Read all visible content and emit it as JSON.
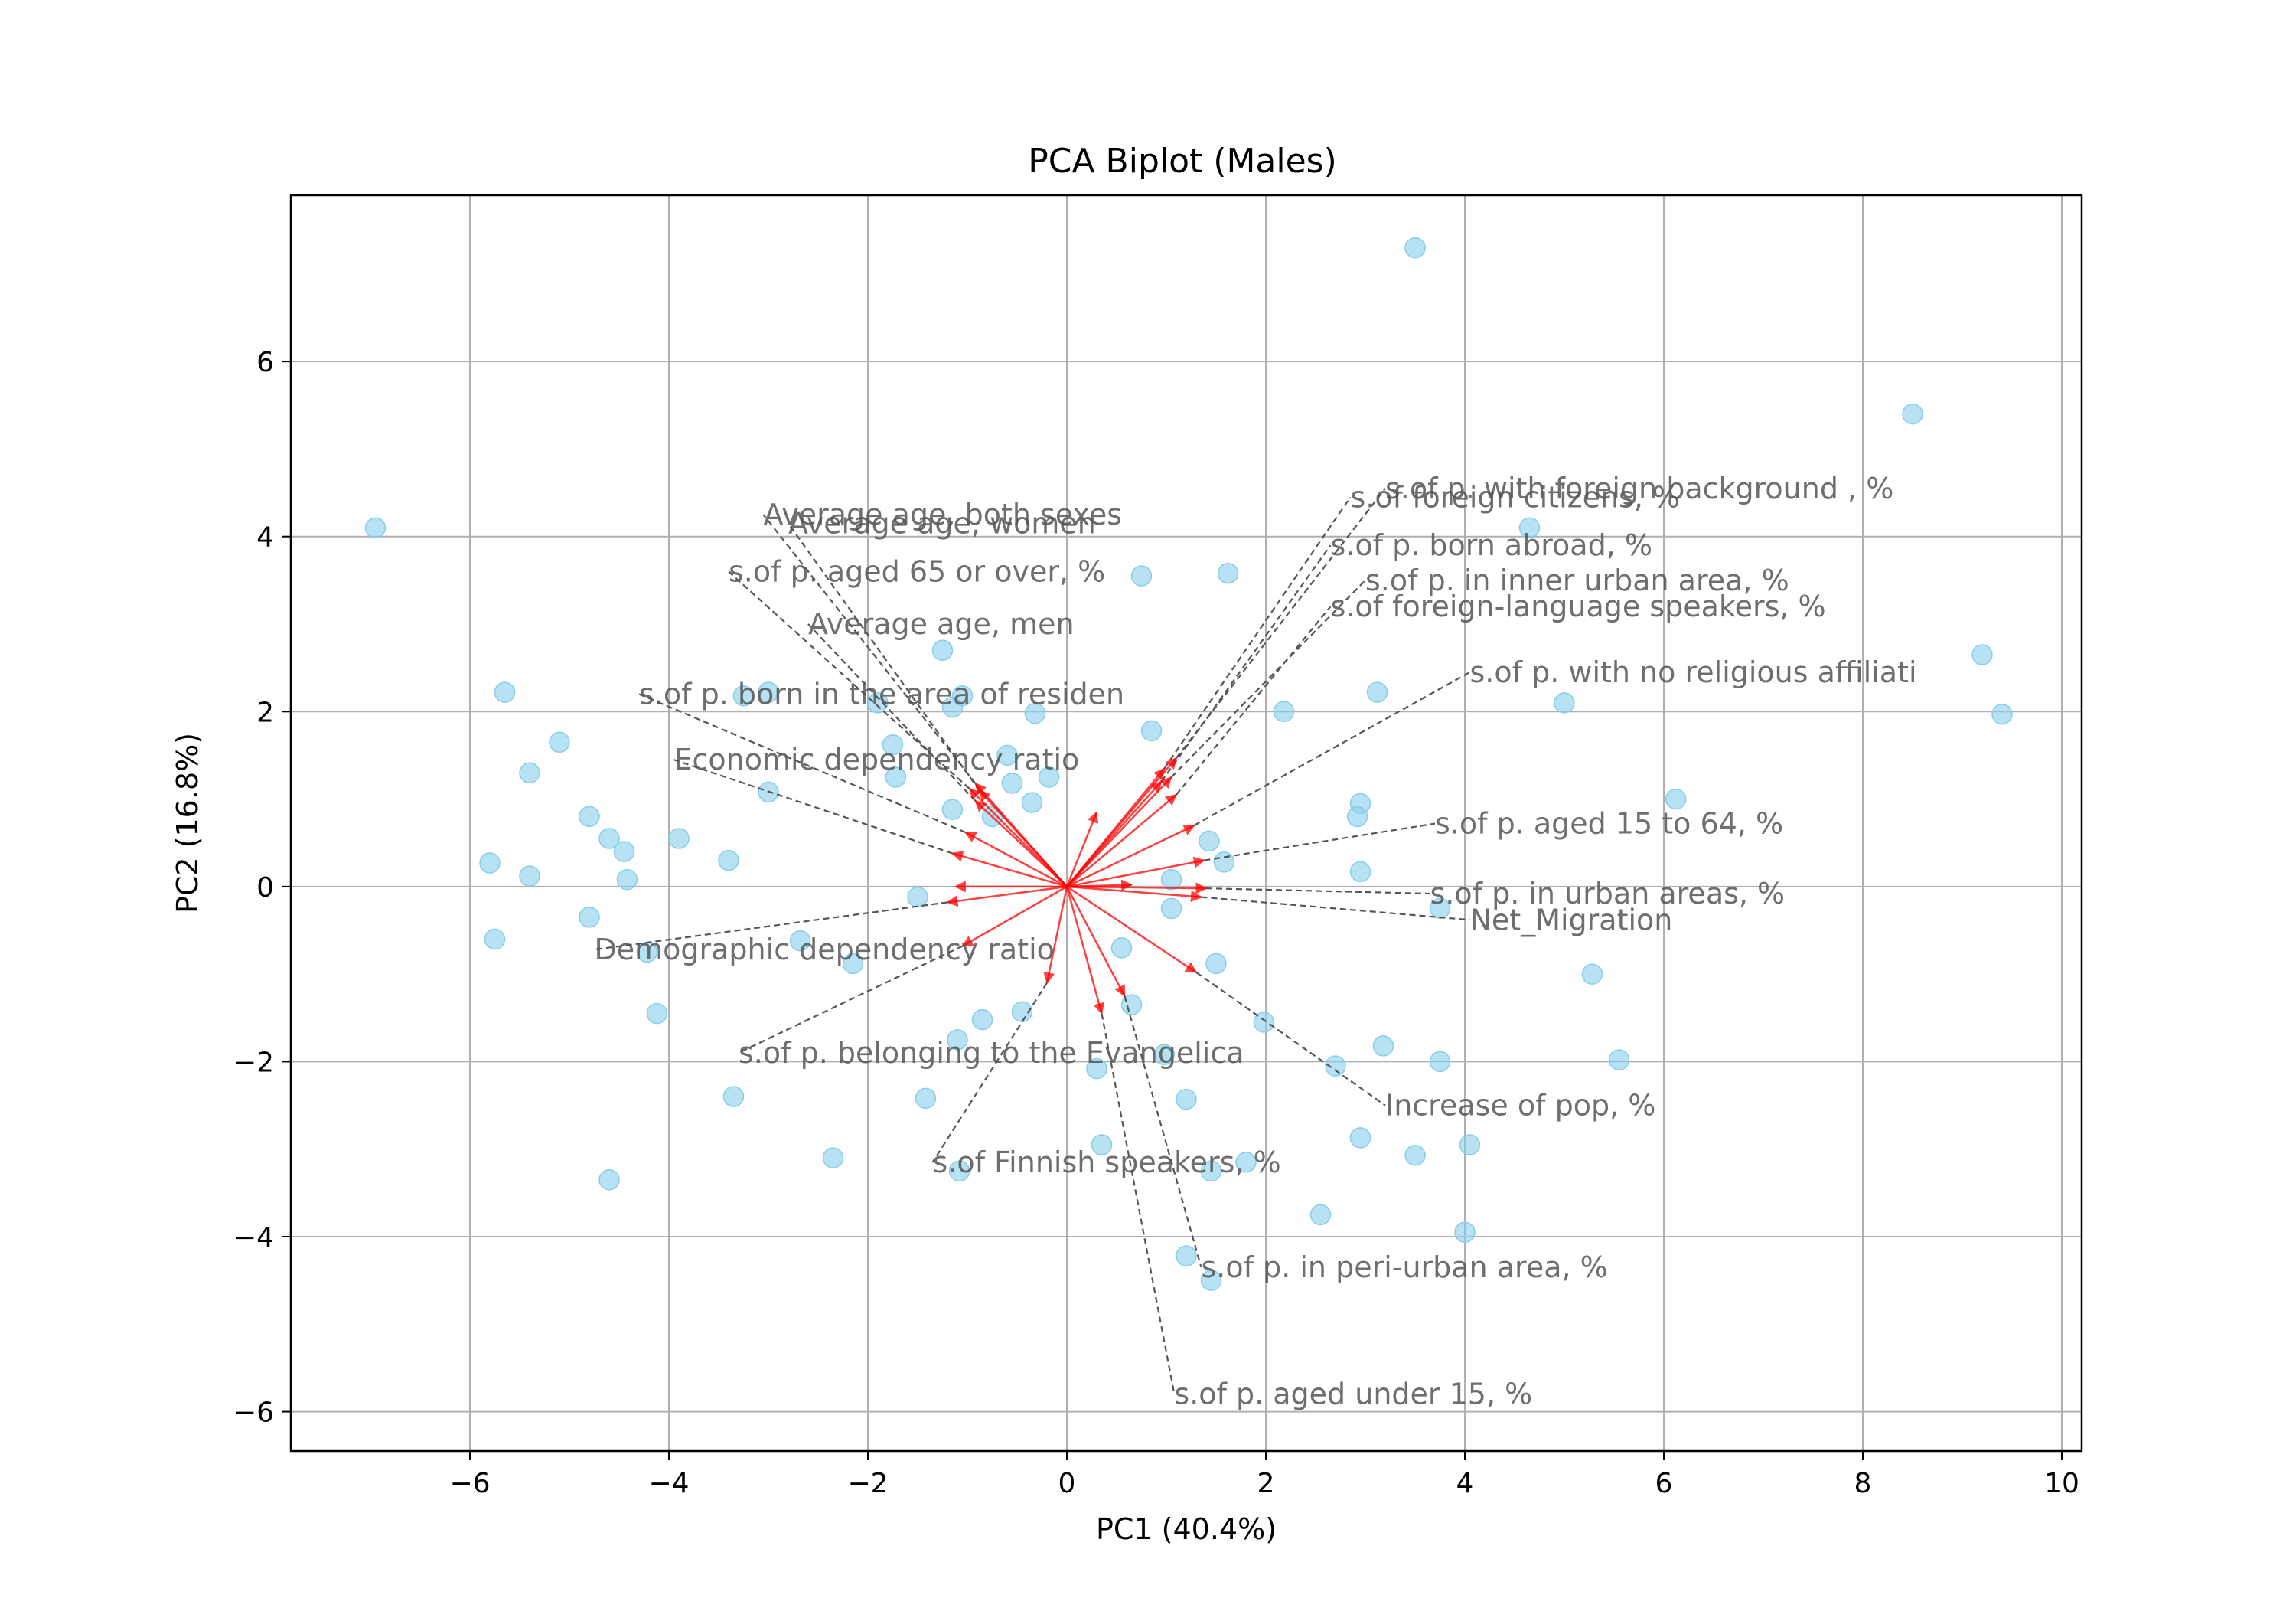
{
  "chart_data": {
    "type": "scatter",
    "title": "PCA Biplot (Males)",
    "xlabel": "PC1 (40.4%)",
    "ylabel": "PC2 (16.8%)",
    "xlim": [
      -7.8,
      10.2
    ],
    "ylim": [
      -6.45,
      7.9
    ],
    "xticks": [
      -6,
      -4,
      -2,
      0,
      2,
      4,
      6,
      8,
      10
    ],
    "yticks": [
      -6,
      -4,
      -2,
      0,
      2,
      4,
      6
    ],
    "xtick_labels": [
      "−6",
      "−4",
      "−2",
      "0",
      "2",
      "4",
      "6",
      "8",
      "10"
    ],
    "ytick_labels": [
      "−6",
      "−4",
      "−2",
      "0",
      "2",
      "4",
      "6"
    ],
    "grid": true,
    "colors": {
      "points": "#87ceeb",
      "arrows": "#ff0000",
      "dashed": "#555555",
      "label": "#555555",
      "grid": "#b0b0b0"
    },
    "points": [
      [
        -6.95,
        4.1
      ],
      [
        -5.65,
        2.22
      ],
      [
        -5.8,
        0.27
      ],
      [
        -5.75,
        -0.6
      ],
      [
        -5.4,
        1.3
      ],
      [
        -5.4,
        0.12
      ],
      [
        -5.1,
        1.65
      ],
      [
        -4.8,
        0.8
      ],
      [
        -4.8,
        -0.35
      ],
      [
        -4.6,
        0.55
      ],
      [
        -4.45,
        0.4
      ],
      [
        -4.42,
        0.08
      ],
      [
        -4.6,
        -3.35
      ],
      [
        -4.22,
        -0.75
      ],
      [
        -4.12,
        -1.45
      ],
      [
        -3.9,
        0.55
      ],
      [
        -3.4,
        0.3
      ],
      [
        -3.35,
        -2.4
      ],
      [
        -3.25,
        2.18
      ],
      [
        -3.0,
        2.22
      ],
      [
        -3.0,
        1.08
      ],
      [
        -2.68,
        -0.62
      ],
      [
        -2.35,
        -3.1
      ],
      [
        -2.15,
        -0.88
      ],
      [
        -1.9,
        2.1
      ],
      [
        -1.75,
        1.62
      ],
      [
        -1.72,
        1.25
      ],
      [
        -1.5,
        -0.12
      ],
      [
        -1.42,
        -2.42
      ],
      [
        -1.25,
        2.7
      ],
      [
        -1.15,
        2.05
      ],
      [
        -1.15,
        0.88
      ],
      [
        -1.05,
        2.18
      ],
      [
        -1.1,
        -1.75
      ],
      [
        -1.08,
        -3.25
      ],
      [
        -0.85,
        -1.52
      ],
      [
        -0.75,
        0.8
      ],
      [
        -0.6,
        1.5
      ],
      [
        -0.55,
        1.18
      ],
      [
        -0.45,
        -1.43
      ],
      [
        -0.35,
        0.96
      ],
      [
        -0.32,
        1.98
      ],
      [
        -0.18,
        1.25
      ],
      [
        0.3,
        -2.08
      ],
      [
        0.35,
        -2.95
      ],
      [
        0.55,
        -0.7
      ],
      [
        0.65,
        -1.35
      ],
      [
        0.75,
        3.55
      ],
      [
        0.85,
        1.78
      ],
      [
        0.98,
        -1.92
      ],
      [
        1.05,
        0.08
      ],
      [
        1.05,
        -0.25
      ],
      [
        1.2,
        -2.43
      ],
      [
        1.2,
        -4.22
      ],
      [
        1.43,
        0.52
      ],
      [
        1.45,
        -3.25
      ],
      [
        1.45,
        -4.5
      ],
      [
        1.5,
        -0.88
      ],
      [
        1.58,
        0.28
      ],
      [
        1.62,
        3.58
      ],
      [
        1.8,
        -3.15
      ],
      [
        1.98,
        -1.55
      ],
      [
        2.18,
        2.0
      ],
      [
        2.55,
        -3.75
      ],
      [
        2.7,
        -2.05
      ],
      [
        2.92,
        0.8
      ],
      [
        2.95,
        0.95
      ],
      [
        2.95,
        0.17
      ],
      [
        2.95,
        -2.87
      ],
      [
        3.12,
        2.22
      ],
      [
        3.18,
        -1.82
      ],
      [
        3.5,
        7.3
      ],
      [
        3.5,
        -3.07
      ],
      [
        3.75,
        -0.25
      ],
      [
        3.75,
        -2.0
      ],
      [
        4.0,
        -3.95
      ],
      [
        4.05,
        -2.95
      ],
      [
        4.65,
        4.1
      ],
      [
        5.0,
        2.1
      ],
      [
        5.28,
        -1.0
      ],
      [
        5.55,
        -1.98
      ],
      [
        6.12,
        1.0
      ],
      [
        8.5,
        5.4
      ],
      [
        9.2,
        2.65
      ],
      [
        9.4,
        1.97
      ]
    ],
    "loadings": [
      {
        "label": "s.of p. with foreign background , %",
        "arrow": [
          1.1,
          1.47
        ],
        "text": [
          3.2,
          4.55
        ],
        "anchor": "start"
      },
      {
        "label": "s.of foreign citizens, %",
        "arrow": [
          0.98,
          1.35
        ],
        "text": [
          2.85,
          4.45
        ],
        "anchor": "start"
      },
      {
        "label": "s.of p. born abroad, %",
        "arrow": [
          0.95,
          1.2
        ],
        "text": [
          2.65,
          3.9
        ],
        "anchor": "start"
      },
      {
        "label": "s.of p. in inner urban area, %",
        "arrow": [
          1.05,
          1.25
        ],
        "text": [
          3.0,
          3.5
        ],
        "anchor": "start"
      },
      {
        "label": "s.of foreign-language speakers, %",
        "arrow": [
          1.1,
          1.05
        ],
        "text": [
          2.65,
          3.2
        ],
        "anchor": "start"
      },
      {
        "label": "s.of p. with no religious affiliati",
        "arrow": [
          1.28,
          0.7
        ],
        "text": [
          4.05,
          2.45
        ],
        "anchor": "start"
      },
      {
        "label": "s.of p. aged 15 to 64, %",
        "arrow": [
          1.38,
          0.3
        ],
        "text": [
          3.7,
          0.72
        ],
        "anchor": "start"
      },
      {
        "label": "s.of p. in urban areas, %",
        "arrow": [
          1.4,
          -0.02
        ],
        "text": [
          3.65,
          -0.08
        ],
        "anchor": "start"
      },
      {
        "label": "Net_Migration",
        "arrow": [
          1.35,
          -0.12
        ],
        "text": [
          4.05,
          -0.38
        ],
        "anchor": "start"
      },
      {
        "label": "Increase of pop, %",
        "arrow": [
          1.3,
          -0.98
        ],
        "text": [
          3.2,
          -2.5
        ],
        "anchor": "start"
      },
      {
        "label": "s.of p. in peri-urban area, %",
        "arrow": [
          0.58,
          -1.25
        ],
        "text": [
          1.35,
          -4.35
        ],
        "anchor": "start"
      },
      {
        "label": "s.of p. aged under 15, %",
        "arrow": [
          0.35,
          -1.45
        ],
        "text": [
          1.08,
          -5.8
        ],
        "anchor": "start"
      },
      {
        "label": "s.of Finnish speakers, %",
        "arrow": [
          -0.2,
          -1.1
        ],
        "text": [
          -1.35,
          -3.15
        ],
        "anchor": "start"
      },
      {
        "label": "s.of p. belonging to the Evangelica",
        "arrow": [
          -1.05,
          -0.68
        ],
        "text": [
          -3.3,
          -1.9
        ],
        "anchor": "start"
      },
      {
        "label": "Demographic dependency ratio",
        "arrow": [
          -1.2,
          -0.18
        ],
        "text": [
          -4.75,
          -0.72
        ],
        "anchor": "start"
      },
      {
        "label": "Economic dependency ratio",
        "arrow": [
          -1.15,
          0.38
        ],
        "text": [
          -3.95,
          1.45
        ],
        "anchor": "start"
      },
      {
        "label": "s.of p. born in the area of residen",
        "arrow": [
          -1.02,
          0.62
        ],
        "text": [
          -4.3,
          2.2
        ],
        "anchor": "start"
      },
      {
        "label": "Average age, men",
        "arrow": [
          -0.92,
          0.98
        ],
        "text": [
          -2.6,
          3.0
        ],
        "anchor": "start"
      },
      {
        "label": "s.of p. aged 65 or over, %",
        "arrow": [
          -0.98,
          1.12
        ],
        "text": [
          -3.4,
          3.6
        ],
        "anchor": "start"
      },
      {
        "label": "Average age, women",
        "arrow": [
          -0.88,
          1.1
        ],
        "text": [
          -2.8,
          4.15
        ],
        "anchor": "start"
      },
      {
        "label": "Average age, both sexes",
        "arrow": [
          -0.92,
          1.18
        ],
        "text": [
          -3.05,
          4.25
        ],
        "anchor": "start"
      },
      {
        "label": "",
        "arrow": [
          -1.12,
          0.0
        ],
        "text": null,
        "anchor": "start"
      },
      {
        "label": "",
        "arrow": [
          0.65,
          0.02
        ],
        "text": null,
        "anchor": "start"
      },
      {
        "label": "",
        "arrow": [
          0.3,
          0.85
        ],
        "text": null,
        "anchor": "start"
      }
    ]
  }
}
